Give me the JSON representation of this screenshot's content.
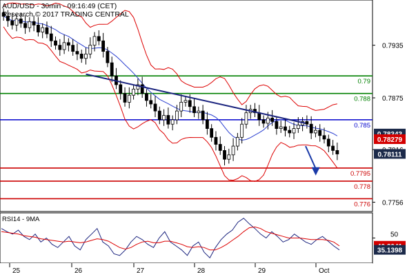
{
  "header": {
    "title": "AUD/USD - 30min - 09:16:49 (CET)",
    "subtitle": "Research © 2017 TRADING CENTRAL"
  },
  "colors": {
    "candle": "#000000",
    "bollinger": "#dd0000",
    "moving_average": "#2a3fd0",
    "trendline": "#1a237e",
    "support": "#cc0000",
    "resistance_green": "#008000",
    "pivot_blue": "#0000cc",
    "rsi_line": "#1a237e",
    "rsi_ma": "#dd0000",
    "arrow": "#1a3aa8"
  },
  "chart_data": [
    {
      "type": "candlestick",
      "title": "AUD/USD - 30min - 09:16:49 (CET)",
      "xlabel": "",
      "ylabel": "",
      "x_ticks": [
        "25",
        "26",
        "27",
        "28",
        "29",
        "Oct"
      ],
      "y_ticks": [
        0.7935,
        0.7875,
        0.7816,
        0.7756
      ],
      "ylim": [
        0.7747,
        0.7985
      ],
      "grid": false,
      "levels": [
        {
          "label": "0.79",
          "value": 0.79,
          "kind": "resistance"
        },
        {
          "label": "0.788",
          "value": 0.788,
          "kind": "resistance"
        },
        {
          "label": "0.785",
          "value": 0.785,
          "kind": "pivot"
        },
        {
          "label": "0.7795",
          "value": 0.7795,
          "kind": "support"
        },
        {
          "label": "0.778",
          "value": 0.778,
          "kind": "support"
        },
        {
          "label": "0.776",
          "value": 0.776,
          "kind": "support"
        }
      ],
      "value_tags": [
        {
          "label": "0.78343",
          "value": 0.78343,
          "style": "dark"
        },
        {
          "label": "0.78279",
          "value": 0.78279,
          "style": "red"
        },
        {
          "label": "0.78111",
          "value": 0.78111,
          "style": "dark"
        }
      ],
      "trendline": {
        "start": {
          "x": 0.25,
          "y": 0.7902
        },
        "end": {
          "x": 0.9,
          "y": 0.7846
        }
      },
      "forecast_arrow": {
        "start": {
          "x": 0.9,
          "y": 0.782
        },
        "end": {
          "x": 0.93,
          "y": 0.7788
        }
      },
      "close_series": [
        0.7968,
        0.7963,
        0.7958,
        0.7965,
        0.796,
        0.7955,
        0.7962,
        0.7958,
        0.795,
        0.7955,
        0.7948,
        0.794,
        0.7935,
        0.793,
        0.7938,
        0.7935,
        0.7928,
        0.7925,
        0.792,
        0.7925,
        0.7935,
        0.7945,
        0.794,
        0.7928,
        0.7915,
        0.79,
        0.789,
        0.788,
        0.787,
        0.7878,
        0.7885,
        0.789,
        0.788,
        0.7872,
        0.7868,
        0.786,
        0.785,
        0.7855,
        0.7845,
        0.785,
        0.786,
        0.787,
        0.7872,
        0.7865,
        0.7858,
        0.786,
        0.785,
        0.784,
        0.783,
        0.7822,
        0.7815,
        0.7805,
        0.781,
        0.782,
        0.783,
        0.7845,
        0.7858,
        0.7862,
        0.7858,
        0.785,
        0.7846,
        0.7852,
        0.7848,
        0.784,
        0.7842,
        0.7838,
        0.7835,
        0.784,
        0.7844,
        0.7848,
        0.7845,
        0.7835,
        0.7838,
        0.7832,
        0.7828,
        0.782,
        0.7815,
        0.7811
      ]
    },
    {
      "type": "line",
      "title": "RSI14 - 9MA",
      "y_ticks": [
        50
      ],
      "value_tags": [
        {
          "label": "40.2041",
          "value": 40.2,
          "style": "red"
        },
        {
          "label": "35.1398",
          "value": 35.1,
          "style": "dark"
        }
      ],
      "series": [
        {
          "name": "RSI14",
          "values": [
            62,
            58,
            55,
            60,
            52,
            48,
            55,
            45,
            50,
            42,
            38,
            45,
            52,
            40,
            35,
            48,
            55,
            62,
            45,
            40,
            30,
            28,
            35,
            45,
            52,
            48,
            42,
            38,
            50,
            58,
            45,
            40,
            35,
            28,
            40,
            45,
            32,
            25,
            38,
            48,
            55,
            60,
            70,
            75,
            68,
            62,
            55,
            50,
            58,
            52,
            45,
            48,
            55,
            50,
            45,
            42,
            48,
            52,
            46,
            40,
            35
          ]
        },
        {
          "name": "9MA",
          "values": [
            58,
            57,
            56,
            55,
            53,
            52,
            51,
            49,
            48,
            47,
            46,
            45,
            46,
            45,
            44,
            45,
            47,
            49,
            48,
            46,
            42,
            38,
            36,
            38,
            42,
            45,
            46,
            44,
            44,
            46,
            46,
            44,
            42,
            39,
            38,
            39,
            38,
            35,
            35,
            38,
            42,
            47,
            52,
            58,
            63,
            64,
            62,
            58,
            56,
            54,
            52,
            50,
            50,
            50,
            49,
            48,
            48,
            48,
            47,
            45,
            40
          ]
        }
      ]
    }
  ]
}
